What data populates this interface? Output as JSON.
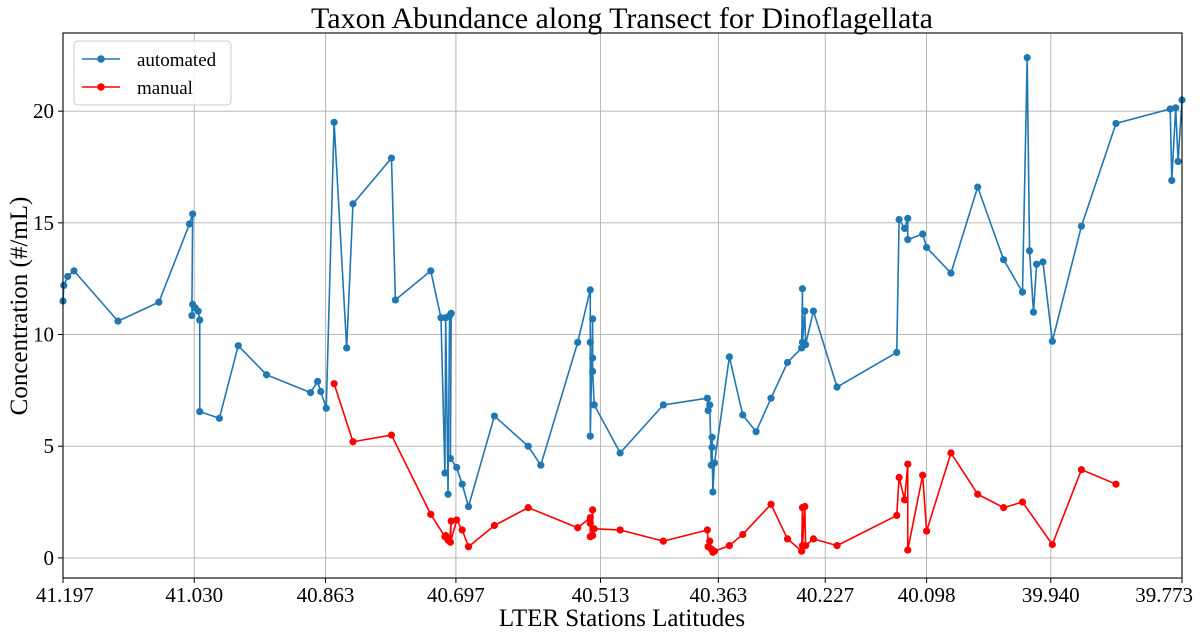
{
  "chart_data": {
    "type": "line",
    "title": "Taxon Abundance along Transect for Dinoflagellata",
    "xlabel": "LTER Stations Latitudes",
    "ylabel": "Concentration (#/mL)",
    "x_axis_reversed": true,
    "xlim": [
      41.197,
      39.773
    ],
    "ylim": [
      -0.9,
      23.5
    ],
    "xticks": [
      "41.197",
      "41.030",
      "40.863",
      "40.697",
      "40.513",
      "40.363",
      "40.227",
      "40.098",
      "39.940",
      "39.773"
    ],
    "yticks": [
      "0",
      "5",
      "10",
      "15",
      "20"
    ],
    "grid": true,
    "legend_position": "top-left",
    "series": [
      {
        "name": "automated",
        "color": "#1f77b4",
        "marker": "circle",
        "points": [
          [
            41.197,
            11.5
          ],
          [
            41.196,
            12.2
          ],
          [
            41.191,
            12.6
          ],
          [
            41.183,
            12.85
          ],
          [
            41.127,
            10.6
          ],
          [
            41.075,
            11.45
          ],
          [
            41.036,
            14.95
          ],
          [
            41.032,
            15.4
          ],
          [
            41.033,
            10.85
          ],
          [
            41.032,
            11.35
          ],
          [
            41.029,
            11.2
          ],
          [
            41.025,
            11.05
          ],
          [
            41.023,
            10.65
          ],
          [
            41.023,
            6.55
          ],
          [
            40.998,
            6.25
          ],
          [
            40.974,
            9.5
          ],
          [
            40.938,
            8.2
          ],
          [
            40.882,
            7.4
          ],
          [
            40.873,
            7.9
          ],
          [
            40.869,
            7.45
          ],
          [
            40.862,
            6.7
          ],
          [
            40.852,
            19.5
          ],
          [
            40.836,
            9.4
          ],
          [
            40.828,
            15.85
          ],
          [
            40.779,
            17.9
          ],
          [
            40.774,
            11.55
          ],
          [
            40.729,
            12.85
          ],
          [
            40.716,
            10.75
          ],
          [
            40.711,
            3.8
          ],
          [
            40.71,
            10.75
          ],
          [
            40.707,
            2.85
          ],
          [
            40.705,
            10.85
          ],
          [
            40.703,
            10.95
          ],
          [
            40.704,
            4.45
          ],
          [
            40.696,
            4.05
          ],
          [
            40.689,
            3.3
          ],
          [
            40.681,
            2.3
          ],
          [
            40.648,
            6.35
          ],
          [
            40.605,
            5.0
          ],
          [
            40.589,
            4.15
          ],
          [
            40.542,
            9.65
          ],
          [
            40.526,
            12.0
          ],
          [
            40.526,
            9.65
          ],
          [
            40.526,
            5.45
          ],
          [
            40.523,
            10.7
          ],
          [
            40.523,
            8.95
          ],
          [
            40.523,
            8.35
          ],
          [
            40.521,
            6.85
          ],
          [
            40.488,
            4.7
          ],
          [
            40.433,
            6.85
          ],
          [
            40.377,
            7.15
          ],
          [
            40.376,
            6.6
          ],
          [
            40.374,
            6.85
          ],
          [
            40.372,
            4.15
          ],
          [
            40.371,
            5.4
          ],
          [
            40.371,
            4.95
          ],
          [
            40.37,
            2.95
          ],
          [
            40.368,
            4.25
          ],
          [
            40.349,
            9.0
          ],
          [
            40.332,
            6.4
          ],
          [
            40.315,
            5.65
          ],
          [
            40.296,
            7.15
          ],
          [
            40.275,
            8.75
          ],
          [
            40.257,
            9.4
          ],
          [
            40.256,
            12.05
          ],
          [
            40.256,
            9.65
          ],
          [
            40.253,
            11.05
          ],
          [
            40.252,
            9.55
          ],
          [
            40.242,
            11.05
          ],
          [
            40.212,
            7.65
          ],
          [
            40.136,
            9.2
          ],
          [
            40.133,
            15.15
          ],
          [
            40.126,
            14.75
          ],
          [
            40.122,
            15.2
          ],
          [
            40.122,
            14.25
          ],
          [
            40.103,
            14.5
          ],
          [
            40.098,
            13.9
          ],
          [
            40.067,
            12.75
          ],
          [
            40.033,
            16.6
          ],
          [
            40.0,
            13.35
          ],
          [
            39.976,
            11.9
          ],
          [
            39.97,
            22.4
          ],
          [
            39.967,
            13.75
          ],
          [
            39.962,
            11.0
          ],
          [
            39.958,
            13.15
          ],
          [
            39.95,
            13.25
          ],
          [
            39.938,
            9.7
          ],
          [
            39.901,
            14.85
          ],
          [
            39.857,
            19.45
          ],
          [
            39.788,
            20.1
          ],
          [
            39.786,
            16.9
          ],
          [
            39.781,
            20.15
          ],
          [
            39.778,
            17.75
          ],
          [
            39.773,
            20.5
          ]
        ]
      },
      {
        "name": "manual",
        "color": "#ff0000",
        "marker": "circle",
        "points": [
          [
            40.852,
            7.8
          ],
          [
            40.828,
            5.2
          ],
          [
            40.779,
            5.5
          ],
          [
            40.729,
            1.95
          ],
          [
            40.711,
            0.95
          ],
          [
            40.71,
            1.0
          ],
          [
            40.707,
            0.8
          ],
          [
            40.705,
            0.75
          ],
          [
            40.703,
            1.65
          ],
          [
            40.704,
            0.7
          ],
          [
            40.696,
            1.7
          ],
          [
            40.689,
            1.25
          ],
          [
            40.681,
            0.5
          ],
          [
            40.648,
            1.45
          ],
          [
            40.605,
            2.25
          ],
          [
            40.542,
            1.35
          ],
          [
            40.526,
            1.8
          ],
          [
            40.526,
            1.55
          ],
          [
            40.526,
            0.95
          ],
          [
            40.523,
            2.15
          ],
          [
            40.523,
            1.0
          ],
          [
            40.521,
            1.3
          ],
          [
            40.488,
            1.25
          ],
          [
            40.433,
            0.75
          ],
          [
            40.377,
            1.25
          ],
          [
            40.376,
            0.5
          ],
          [
            40.374,
            0.75
          ],
          [
            40.372,
            0.4
          ],
          [
            40.37,
            0.25
          ],
          [
            40.368,
            0.3
          ],
          [
            40.349,
            0.55
          ],
          [
            40.332,
            1.05
          ],
          [
            40.296,
            2.4
          ],
          [
            40.275,
            0.85
          ],
          [
            40.257,
            0.3
          ],
          [
            40.256,
            2.25
          ],
          [
            40.256,
            0.55
          ],
          [
            40.253,
            2.3
          ],
          [
            40.252,
            0.55
          ],
          [
            40.242,
            0.85
          ],
          [
            40.212,
            0.55
          ],
          [
            40.136,
            1.9
          ],
          [
            40.133,
            3.6
          ],
          [
            40.126,
            2.6
          ],
          [
            40.122,
            4.2
          ],
          [
            40.122,
            0.35
          ],
          [
            40.103,
            3.7
          ],
          [
            40.098,
            1.2
          ],
          [
            40.067,
            4.7
          ],
          [
            40.033,
            2.85
          ],
          [
            40.0,
            2.25
          ],
          [
            39.976,
            2.5
          ],
          [
            39.938,
            0.6
          ],
          [
            39.901,
            3.95
          ],
          [
            39.857,
            3.3
          ]
        ]
      }
    ]
  }
}
